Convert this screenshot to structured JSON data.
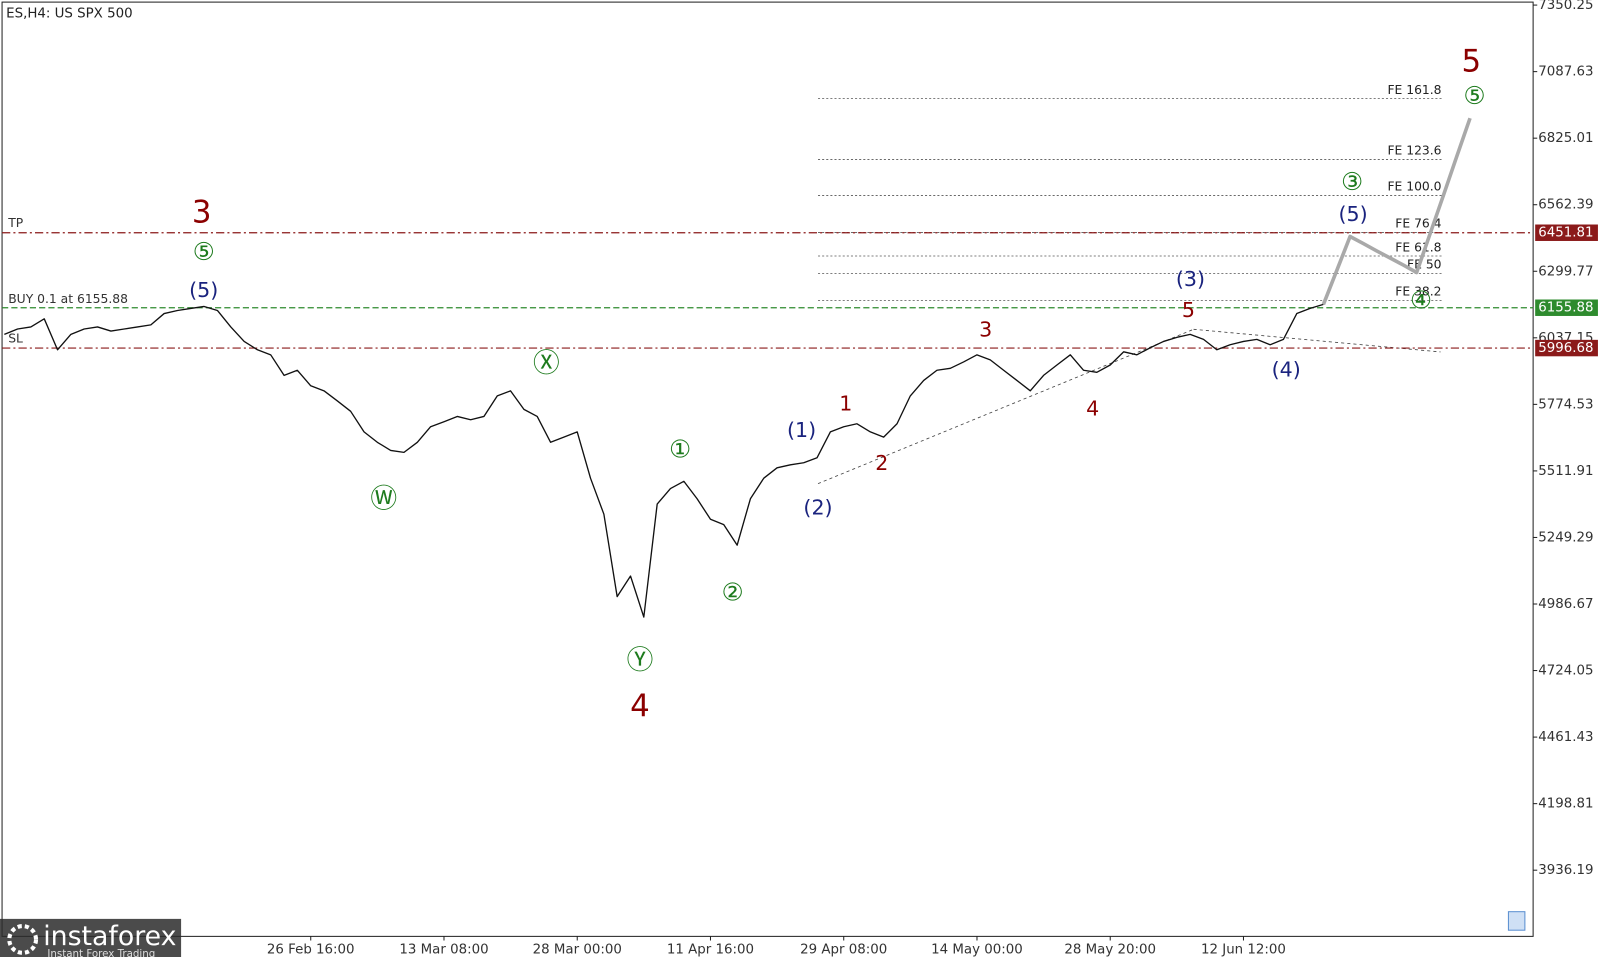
{
  "chart_data": {
    "type": "line",
    "title": "ES,H4: US SPX 500",
    "categories": [
      null,
      null,
      null,
      null,
      null,
      null,
      null,
      null,
      null,
      null,
      null,
      null,
      null,
      null,
      null,
      null,
      null,
      null,
      null,
      null,
      null,
      null,
      null,
      "26 Feb 16:00",
      null,
      null,
      null,
      null,
      null,
      null,
      null,
      null,
      null,
      "13 Mar 08:00",
      null,
      null,
      null,
      null,
      null,
      null,
      null,
      null,
      null,
      "28 Mar 00:00",
      null,
      null,
      null,
      null,
      null,
      null,
      null,
      null,
      null,
      "11 Apr 16:00",
      null,
      null,
      null,
      null,
      null,
      null,
      null,
      null,
      null,
      "29 Apr 08:00",
      null,
      null,
      null,
      null,
      null,
      null,
      null,
      null,
      null,
      "14 May 00:00",
      null,
      null,
      null,
      null,
      null,
      null,
      null,
      null,
      null,
      "28 May 20:00",
      null,
      null,
      null,
      null,
      null,
      null,
      null,
      null,
      null,
      "12 Jun 12:00",
      null,
      null,
      null,
      null,
      null,
      null,
      null,
      null,
      null,
      null,
      null,
      null,
      null,
      null,
      null,
      null,
      null
    ],
    "series": [
      {
        "color": "#111111",
        "values": [
          6051,
          6072,
          6080,
          6112,
          5990,
          6051,
          6072,
          6080,
          6064,
          6072,
          6080,
          6088,
          6133,
          6145,
          6153,
          6161,
          6145,
          6080,
          6023,
          5990,
          5970,
          5889,
          5909,
          5848,
          5828,
          5788,
          5747,
          5666,
          5625,
          5593,
          5585,
          5625,
          5686,
          5706,
          5727,
          5714,
          5727,
          5808,
          5828,
          5755,
          5727,
          5625,
          5645,
          5666,
          5483,
          5341,
          5016,
          5097,
          4935,
          5381,
          5442,
          5471,
          5402,
          5321,
          5300,
          5219,
          5402,
          5483,
          5524,
          5536,
          5544,
          5564,
          5666,
          5686,
          5698,
          5666,
          5645,
          5698,
          5808,
          5869,
          5909,
          5917,
          5942,
          5970,
          5950,
          5909,
          5869,
          5828,
          5889,
          5930,
          5970,
          5909,
          5901,
          5930,
          5982,
          5970,
          5998,
          6023,
          6039,
          6051,
          6031,
          5990,
          6010,
          6023,
          6031,
          6010,
          6031,
          6133,
          6153,
          6169,
          null,
          null,
          null,
          null,
          null,
          null,
          null,
          null,
          null,
          null,
          null
        ]
      },
      {
        "color": "#a9a9a9",
        "values": [
          null,
          null,
          null,
          null,
          null,
          null,
          null,
          null,
          null,
          null,
          null,
          null,
          null,
          null,
          null,
          null,
          null,
          null,
          null,
          null,
          null,
          null,
          null,
          null,
          null,
          null,
          null,
          null,
          null,
          null,
          null,
          null,
          null,
          null,
          null,
          null,
          null,
          null,
          null,
          null,
          null,
          null,
          null,
          null,
          null,
          null,
          null,
          null,
          null,
          null,
          null,
          null,
          null,
          null,
          null,
          null,
          null,
          null,
          null,
          null,
          null,
          null,
          null,
          null,
          null,
          null,
          null,
          null,
          null,
          null,
          null,
          null,
          null,
          null,
          null,
          null,
          null,
          null,
          null,
          null,
          null,
          null,
          null,
          null,
          null,
          null,
          null,
          null,
          null,
          null,
          null,
          null,
          null,
          null,
          null,
          null,
          null,
          null,
          null,
          6169,
          6303,
          6437,
          6409,
          6380,
          6352,
          6324,
          6295,
          6447,
          6599,
          6752,
          6904
        ]
      }
    ],
    "ylim": [
      3675,
      7362
    ],
    "yticks": [
      7350.25,
      7087.63,
      6825.01,
      6562.39,
      6299.77,
      6037.15,
      5774.53,
      5511.91,
      5249.29,
      4986.67,
      4724.05,
      4461.43,
      4198.81,
      3936.19
    ],
    "grid": false,
    "levels": [
      {
        "name": "TP",
        "value": 6451.81,
        "color": "#8b1a1a"
      },
      {
        "name": "BUY 0.1 at 6155.88",
        "value": 6155.88,
        "color": "#2e8b2e"
      },
      {
        "name": "SL",
        "value": 5996.68,
        "color": "#8b1a1a"
      }
    ],
    "fib_levels": [
      {
        "label": "FE 161.8",
        "value": 6981
      },
      {
        "label": "FE 123.6",
        "value": 6741
      },
      {
        "label": "FE 100.0",
        "value": 6599
      },
      {
        "label": "FE 76.4",
        "value": 6453
      },
      {
        "label": "FE 61.8",
        "value": 6360
      },
      {
        "label": "FE 50",
        "value": 6291
      },
      {
        "label": "FE 38.2",
        "value": 6185
      }
    ],
    "annotations": [
      {
        "text": "3",
        "color": "#8b0000"
      },
      {
        "text": "⑤",
        "color": "#1e7b1e"
      },
      {
        "text": "(5)",
        "color": "#1a237e"
      },
      {
        "text": "Ⓦ",
        "color": "#1e7b1e"
      },
      {
        "text": "Ⓧ",
        "color": "#1e7b1e"
      },
      {
        "text": "Ⓨ",
        "color": "#1e7b1e"
      },
      {
        "text": "4",
        "color": "#8b0000"
      },
      {
        "text": "①",
        "color": "#1e7b1e"
      },
      {
        "text": "②",
        "color": "#1e7b1e"
      },
      {
        "text": "(1)",
        "color": "#1a237e"
      },
      {
        "text": "(2)",
        "color": "#1a237e"
      },
      {
        "text": "1",
        "color": "#8b0000"
      },
      {
        "text": "2",
        "color": "#8b0000"
      },
      {
        "text": "3",
        "color": "#8b0000"
      },
      {
        "text": "4",
        "color": "#8b0000"
      },
      {
        "text": "5",
        "color": "#8b0000"
      },
      {
        "text": "(3)",
        "color": "#1a237e"
      },
      {
        "text": "(4)",
        "color": "#1a237e"
      },
      {
        "text": "(5)",
        "color": "#1a237e"
      },
      {
        "text": "③",
        "color": "#1e7b1e"
      },
      {
        "text": "④",
        "color": "#1e7b1e"
      },
      {
        "text": "5",
        "color": "#8b0000"
      },
      {
        "text": "⑤",
        "color": "#1e7b1e"
      }
    ]
  },
  "watermark": {
    "brand": "instaforex",
    "tagline": "Instant Forex Trading"
  }
}
